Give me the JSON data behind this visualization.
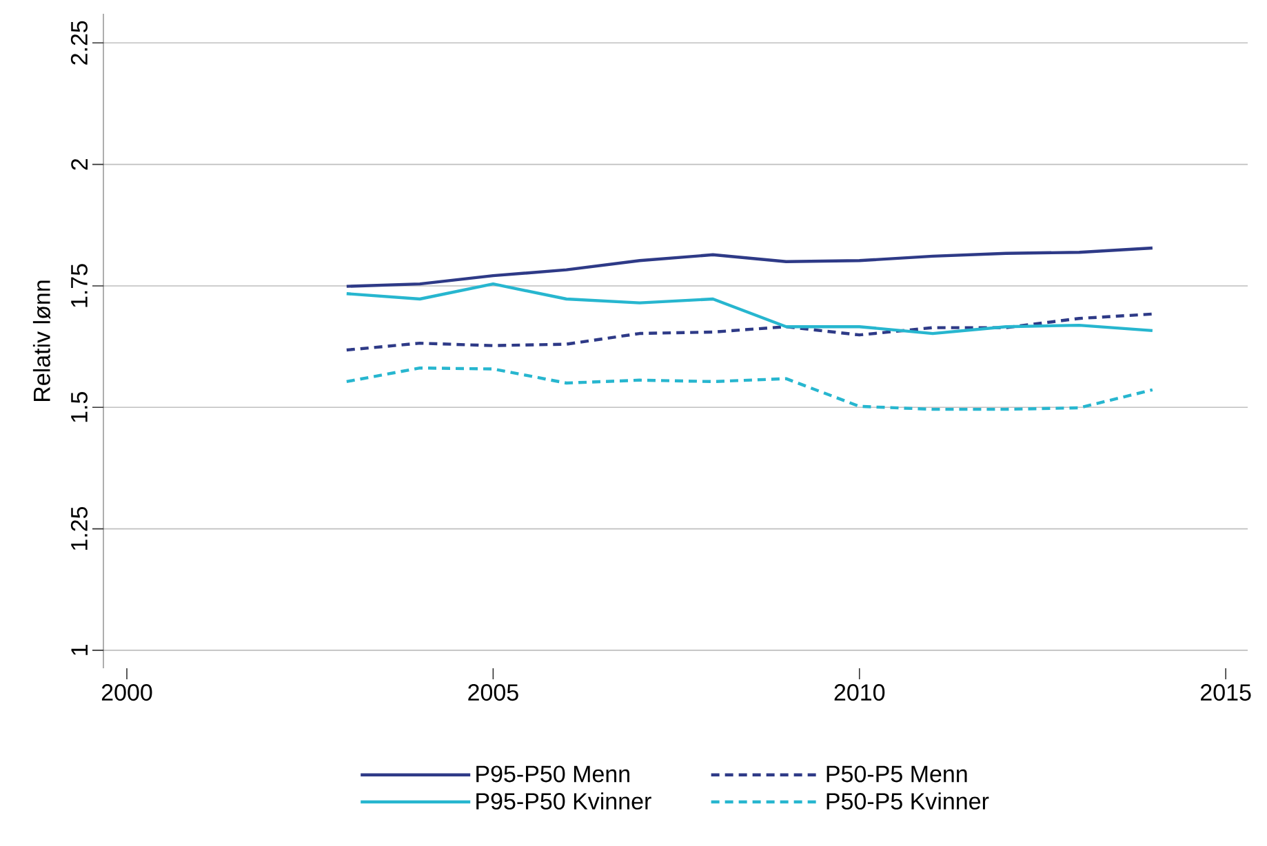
{
  "chart_data": {
    "type": "line",
    "ylabel": "Relativ lønn",
    "x": [
      2003,
      2004,
      2005,
      2006,
      2007,
      2008,
      2009,
      2010,
      2011,
      2012,
      2013,
      2014
    ],
    "series": [
      {
        "name": "P95-P50 Menn",
        "color": "#2e3a87",
        "line_style": "solid",
        "values": [
          1.749,
          1.754,
          1.771,
          1.783,
          1.802,
          1.814,
          1.8,
          1.802,
          1.811,
          1.817,
          1.819,
          1.828
        ]
      },
      {
        "name": "P50-P5 Menn",
        "color": "#2e3a87",
        "line_style": "dashed",
        "values": [
          1.618,
          1.632,
          1.627,
          1.63,
          1.652,
          1.655,
          1.666,
          1.649,
          1.664,
          1.664,
          1.683,
          1.692
        ]
      },
      {
        "name": "P95-P50 Kvinner",
        "color": "#27b6cf",
        "line_style": "solid",
        "values": [
          1.734,
          1.723,
          1.754,
          1.723,
          1.715,
          1.723,
          1.666,
          1.666,
          1.652,
          1.666,
          1.669,
          1.658
        ]
      },
      {
        "name": "P50-P5 Kvinner",
        "color": "#27b6cf",
        "line_style": "dashed",
        "values": [
          1.553,
          1.581,
          1.579,
          1.55,
          1.556,
          1.553,
          1.559,
          1.502,
          1.496,
          1.496,
          1.499,
          1.536
        ]
      }
    ],
    "xlim": [
      1999.68,
      2015.3
    ],
    "ylim": [
      0.963,
      2.31
    ],
    "xticks": [
      2000,
      2005,
      2010,
      2015
    ],
    "yticks": [
      1,
      1.25,
      1.5,
      1.75,
      2,
      2.25
    ],
    "grid": "y",
    "legend": "bottom",
    "marker": "none"
  }
}
